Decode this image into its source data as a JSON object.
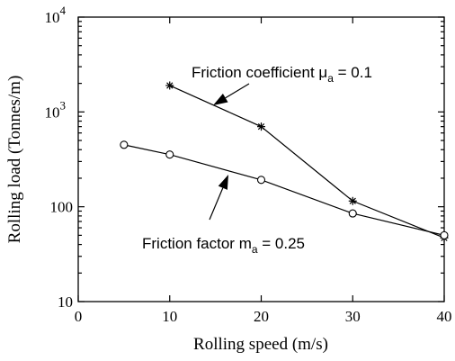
{
  "chart_data": {
    "type": "line",
    "xlabel": "Rolling speed (m/s)",
    "ylabel": "Rolling load (Tonnes/m)",
    "xlim": [
      0,
      40
    ],
    "ylim": [
      10,
      10000
    ],
    "yscale": "log",
    "grid": false,
    "x_ticks": [
      0,
      10,
      20,
      30,
      40
    ],
    "y_ticks": [
      {
        "value": 10,
        "base": "10",
        "exp": ""
      },
      {
        "value": 100,
        "base": "100",
        "exp": ""
      },
      {
        "value": 1000,
        "base": "10",
        "exp": "3"
      },
      {
        "value": 10000,
        "base": "10",
        "exp": "4"
      }
    ],
    "series": [
      {
        "marker": "star",
        "x": [
          10,
          20,
          30,
          40
        ],
        "y": [
          1900,
          700,
          115,
          47
        ]
      },
      {
        "marker": "circle",
        "x": [
          5,
          10,
          20,
          30,
          40
        ],
        "y": [
          450,
          355,
          192,
          85,
          50
        ]
      }
    ],
    "annotations": [
      {
        "label": "Friction coefficient",
        "symbol": "μ",
        "subscript": "a",
        "suffix": " = 0.1",
        "points_to_series": 0
      },
      {
        "label": "Friction factor m",
        "symbol": "",
        "subscript": "a",
        "suffix": " = 0.25",
        "points_to_series": 1
      }
    ]
  }
}
